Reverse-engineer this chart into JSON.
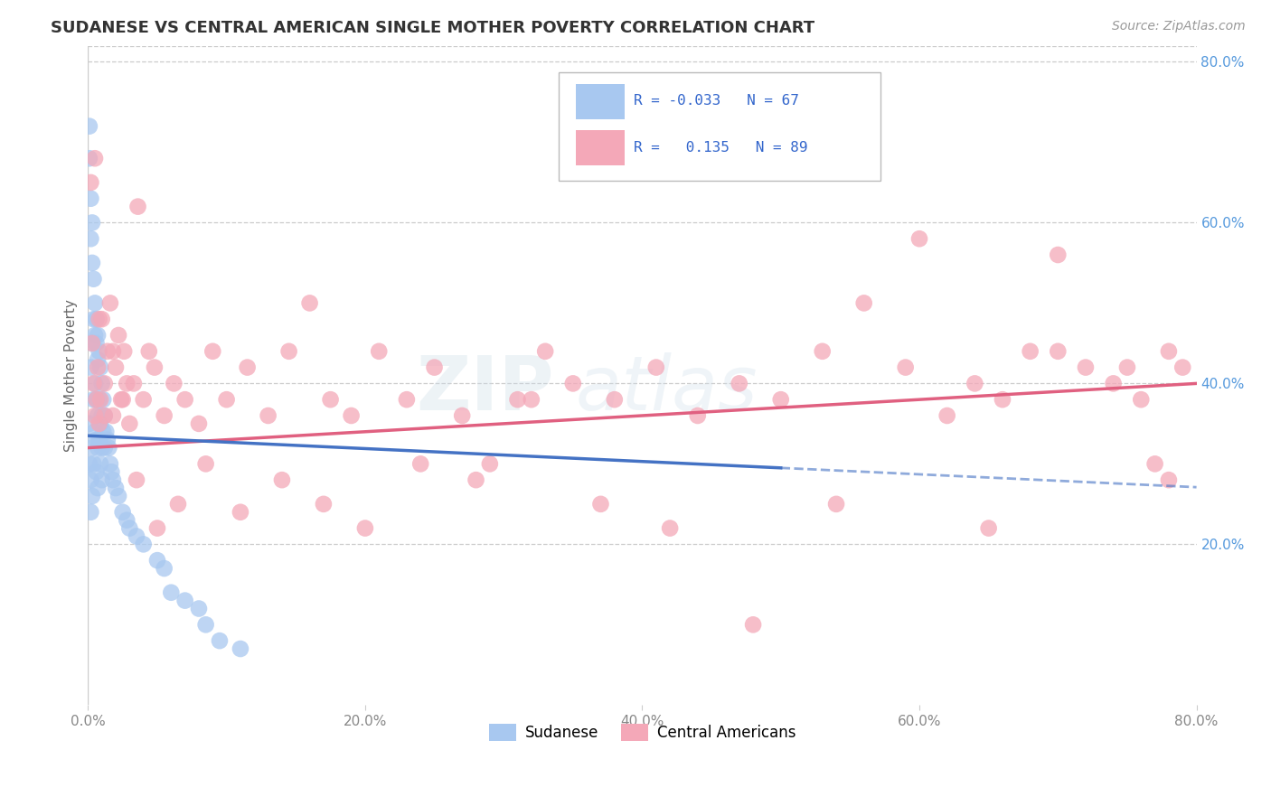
{
  "title": "SUDANESE VS CENTRAL AMERICAN SINGLE MOTHER POVERTY CORRELATION CHART",
  "source": "Source: ZipAtlas.com",
  "ylabel": "Single Mother Poverty",
  "x_min": 0.0,
  "x_max": 0.8,
  "y_min": 0.0,
  "y_max": 0.82,
  "y_ticks": [
    0.2,
    0.4,
    0.6,
    0.8
  ],
  "y_tick_labels": [
    "20.0%",
    "40.0%",
    "60.0%",
    "80.0%"
  ],
  "x_ticks": [
    0.0,
    0.2,
    0.4,
    0.6,
    0.8
  ],
  "x_tick_labels": [
    "0.0%",
    "20.0%",
    "40.0%",
    "60.0%",
    "80.0%"
  ],
  "color_sudanese": "#a8c8f0",
  "color_central": "#f4a8b8",
  "color_sudanese_line": "#4472c4",
  "color_central_line": "#e06080",
  "color_grid": "#cccccc",
  "color_ytick": "#5599dd",
  "color_xtick": "#888888",
  "color_title": "#333333",
  "color_source": "#999999",
  "color_ylabel": "#666666",
  "color_watermark": "#dce8f0",
  "watermark_text": "ZIPatlas",
  "legend_color": "#3366cc",
  "background": "#ffffff",
  "sudanese_x": [
    0.001,
    0.001,
    0.001,
    0.001,
    0.002,
    0.002,
    0.002,
    0.002,
    0.002,
    0.003,
    0.003,
    0.003,
    0.003,
    0.003,
    0.004,
    0.004,
    0.004,
    0.004,
    0.005,
    0.005,
    0.005,
    0.005,
    0.006,
    0.006,
    0.006,
    0.006,
    0.006,
    0.007,
    0.007,
    0.007,
    0.007,
    0.007,
    0.008,
    0.008,
    0.008,
    0.009,
    0.009,
    0.009,
    0.01,
    0.01,
    0.01,
    0.01,
    0.011,
    0.011,
    0.012,
    0.012,
    0.013,
    0.014,
    0.015,
    0.016,
    0.017,
    0.018,
    0.02,
    0.022,
    0.025,
    0.028,
    0.03,
    0.035,
    0.04,
    0.05,
    0.055,
    0.06,
    0.07,
    0.08,
    0.085,
    0.095,
    0.11
  ],
  "sudanese_y": [
    0.72,
    0.68,
    0.35,
    0.3,
    0.63,
    0.58,
    0.42,
    0.28,
    0.24,
    0.6,
    0.55,
    0.45,
    0.32,
    0.26,
    0.53,
    0.48,
    0.38,
    0.3,
    0.5,
    0.46,
    0.4,
    0.34,
    0.48,
    0.45,
    0.38,
    0.33,
    0.29,
    0.46,
    0.43,
    0.36,
    0.32,
    0.27,
    0.44,
    0.38,
    0.33,
    0.42,
    0.35,
    0.3,
    0.4,
    0.36,
    0.32,
    0.28,
    0.38,
    0.34,
    0.36,
    0.32,
    0.34,
    0.33,
    0.32,
    0.3,
    0.29,
    0.28,
    0.27,
    0.26,
    0.24,
    0.23,
    0.22,
    0.21,
    0.2,
    0.18,
    0.17,
    0.14,
    0.13,
    0.12,
    0.1,
    0.08,
    0.07
  ],
  "central_x": [
    0.002,
    0.003,
    0.004,
    0.005,
    0.006,
    0.007,
    0.008,
    0.009,
    0.01,
    0.012,
    0.014,
    0.016,
    0.018,
    0.02,
    0.022,
    0.024,
    0.026,
    0.028,
    0.03,
    0.033,
    0.036,
    0.04,
    0.044,
    0.048,
    0.055,
    0.062,
    0.07,
    0.08,
    0.09,
    0.1,
    0.115,
    0.13,
    0.145,
    0.16,
    0.175,
    0.19,
    0.21,
    0.23,
    0.25,
    0.27,
    0.29,
    0.31,
    0.33,
    0.35,
    0.38,
    0.41,
    0.44,
    0.47,
    0.5,
    0.53,
    0.56,
    0.59,
    0.62,
    0.64,
    0.66,
    0.68,
    0.7,
    0.72,
    0.74,
    0.76,
    0.77,
    0.78,
    0.79,
    0.005,
    0.008,
    0.012,
    0.018,
    0.025,
    0.035,
    0.05,
    0.065,
    0.085,
    0.11,
    0.14,
    0.17,
    0.2,
    0.24,
    0.28,
    0.32,
    0.37,
    0.42,
    0.48,
    0.54,
    0.6,
    0.65,
    0.7,
    0.75,
    0.78
  ],
  "central_y": [
    0.65,
    0.45,
    0.4,
    0.68,
    0.38,
    0.42,
    0.35,
    0.38,
    0.48,
    0.36,
    0.44,
    0.5,
    0.36,
    0.42,
    0.46,
    0.38,
    0.44,
    0.4,
    0.35,
    0.4,
    0.62,
    0.38,
    0.44,
    0.42,
    0.36,
    0.4,
    0.38,
    0.35,
    0.44,
    0.38,
    0.42,
    0.36,
    0.44,
    0.5,
    0.38,
    0.36,
    0.44,
    0.38,
    0.42,
    0.36,
    0.3,
    0.38,
    0.44,
    0.4,
    0.38,
    0.42,
    0.36,
    0.4,
    0.38,
    0.44,
    0.5,
    0.42,
    0.36,
    0.4,
    0.38,
    0.44,
    0.56,
    0.42,
    0.4,
    0.38,
    0.3,
    0.44,
    0.42,
    0.36,
    0.48,
    0.4,
    0.44,
    0.38,
    0.28,
    0.22,
    0.25,
    0.3,
    0.24,
    0.28,
    0.25,
    0.22,
    0.3,
    0.28,
    0.38,
    0.25,
    0.22,
    0.1,
    0.25,
    0.58,
    0.22,
    0.44,
    0.42,
    0.28
  ]
}
